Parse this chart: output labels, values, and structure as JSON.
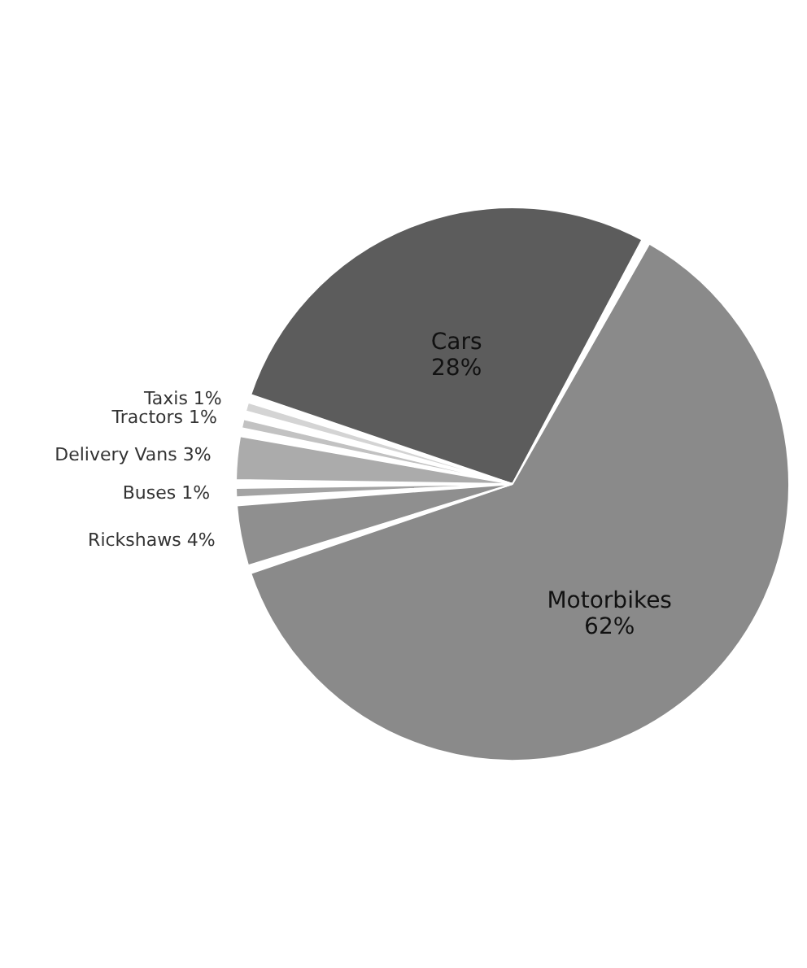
{
  "chart_data": {
    "type": "pie",
    "categories": [
      "Cars",
      "Motorbikes",
      "Rickshaws",
      "Buses",
      "Delivery Vans",
      "Tractors",
      "Taxis"
    ],
    "values": [
      28,
      62,
      4,
      1,
      3,
      1,
      1
    ],
    "value_labels": [
      "28%",
      "62%",
      "4%",
      "1%",
      "3%",
      "1%",
      "1%"
    ],
    "colors": [
      "#5c5c5c",
      "#8a8a8a",
      "#8f8f8f",
      "#a3a3a3",
      "#ababab",
      "#c2c2c2",
      "#d4d4d4"
    ]
  }
}
